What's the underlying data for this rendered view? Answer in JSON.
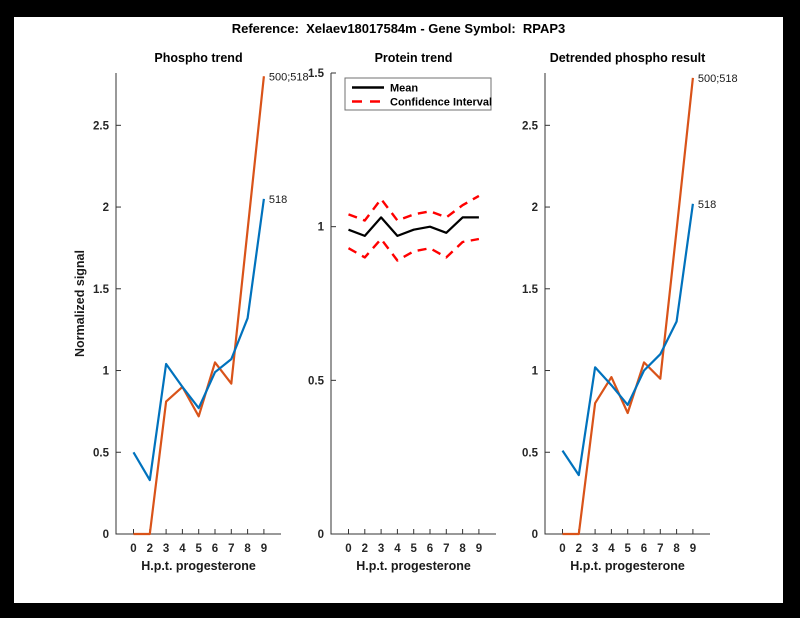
{
  "figure": {
    "title": "Reference:  Xelaev18017584m - Gene Symbol:  RPAP3",
    "background_color": "#000000",
    "canvas_color": "#ffffff"
  },
  "colors": {
    "blue": "#0072BD",
    "orange": "#D95319",
    "red": "#FF0000",
    "black": "#000000",
    "axis": "#333333",
    "legend_border": "#707070"
  },
  "chart_data": [
    {
      "type": "line",
      "title": "Phospho trend",
      "xlabel": "H.p.t. progesterone",
      "ylabel": "Normalized signal",
      "x_tick_labels": [
        "0",
        "2",
        "3",
        "4",
        "5",
        "6",
        "7",
        "8",
        "9"
      ],
      "y_ticks": [
        0,
        0.5,
        1,
        1.5,
        2,
        2.5
      ],
      "ylim": [
        0,
        2.82
      ],
      "grid": false,
      "series": [
        {
          "name": "500;518",
          "color": "#D95319",
          "style": "solid",
          "end_label": "500;518",
          "values": [
            0.0,
            0.0,
            0.81,
            0.9,
            0.72,
            1.05,
            0.92,
            1.86,
            2.8
          ]
        },
        {
          "name": "518",
          "color": "#0072BD",
          "style": "solid",
          "end_label": "518",
          "values": [
            0.5,
            0.33,
            1.04,
            0.9,
            0.77,
            0.99,
            1.07,
            1.32,
            2.05
          ]
        }
      ]
    },
    {
      "type": "line",
      "title": "Protein trend",
      "xlabel": "H.p.t. progesterone",
      "ylabel": "",
      "x_tick_labels": [
        "0",
        "2",
        "3",
        "4",
        "5",
        "6",
        "7",
        "8",
        "9"
      ],
      "y_ticks": [
        0,
        0.5,
        1,
        1.5
      ],
      "ylim": [
        0,
        1.5
      ],
      "grid": false,
      "legend": {
        "position": "top-left-inside",
        "entries": [
          {
            "label": "Mean",
            "color": "#000000",
            "style": "solid"
          },
          {
            "label": "Confidence Interval",
            "color": "#FF0000",
            "style": "dashed"
          }
        ]
      },
      "series": [
        {
          "name": "Mean",
          "color": "#000000",
          "style": "solid",
          "values": [
            0.99,
            0.97,
            1.03,
            0.97,
            0.99,
            1.0,
            0.98,
            1.03,
            1.03
          ]
        },
        {
          "name": "Confidence Interval upper",
          "color": "#FF0000",
          "style": "dashed",
          "values": [
            1.04,
            1.02,
            1.09,
            1.02,
            1.04,
            1.05,
            1.03,
            1.07,
            1.1
          ]
        },
        {
          "name": "Confidence Interval lower",
          "color": "#FF0000",
          "style": "dashed",
          "values": [
            0.93,
            0.9,
            0.96,
            0.89,
            0.92,
            0.93,
            0.9,
            0.95,
            0.96
          ]
        }
      ]
    },
    {
      "type": "line",
      "title": "Detrended phospho result",
      "xlabel": "H.p.t. progesterone",
      "ylabel": "",
      "x_tick_labels": [
        "0",
        "2",
        "3",
        "4",
        "5",
        "6",
        "7",
        "8",
        "9"
      ],
      "y_ticks": [
        0,
        0.5,
        1,
        1.5,
        2,
        2.5
      ],
      "ylim": [
        0,
        2.82
      ],
      "grid": false,
      "series": [
        {
          "name": "500;518",
          "color": "#D95319",
          "style": "solid",
          "end_label": "500;518",
          "values": [
            0.0,
            0.0,
            0.8,
            0.96,
            0.74,
            1.05,
            0.95,
            1.86,
            2.79
          ]
        },
        {
          "name": "518",
          "color": "#0072BD",
          "style": "solid",
          "end_label": "518",
          "values": [
            0.51,
            0.36,
            1.02,
            0.91,
            0.79,
            1.0,
            1.1,
            1.3,
            2.02
          ]
        }
      ]
    }
  ]
}
